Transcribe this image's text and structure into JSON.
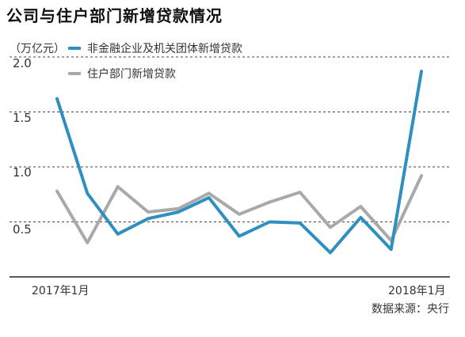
{
  "title": "公司与住户部门新增贷款情况",
  "unit": "（万亿元）",
  "source": "数据来源：央行",
  "chart_data": {
    "type": "line",
    "title": "公司与住户部门新增贷款情况",
    "ylabel": "（万亿元）",
    "ylim": [
      0,
      2.0
    ],
    "yticks": [
      "2.0",
      "1.5",
      "1.0",
      "0.5"
    ],
    "ytick_values": [
      2.0,
      1.5,
      1.0,
      0.5
    ],
    "x": [
      "2017-01",
      "2017-02",
      "2017-03",
      "2017-04",
      "2017-05",
      "2017-06",
      "2017-07",
      "2017-08",
      "2017-09",
      "2017-10",
      "2017-11",
      "2017-12",
      "2018-01"
    ],
    "xtick_labels": [
      {
        "index": 0,
        "label": "2017年1月"
      },
      {
        "index": 12,
        "label": "2018年1月"
      }
    ],
    "grid": "dashed horizontal",
    "legend_position": "top",
    "series": [
      {
        "name": "非金融企业及机关团体新增贷款",
        "color": "#2e8fc0",
        "values": [
          1.62,
          0.76,
          0.39,
          0.53,
          0.59,
          0.72,
          0.37,
          0.5,
          0.49,
          0.22,
          0.54,
          0.25,
          1.87
        ]
      },
      {
        "name": "住户部门新增贷款",
        "color": "#a9a9a9",
        "values": [
          0.78,
          0.31,
          0.82,
          0.59,
          0.62,
          0.76,
          0.57,
          0.68,
          0.77,
          0.45,
          0.64,
          0.33,
          0.92
        ]
      }
    ]
  }
}
